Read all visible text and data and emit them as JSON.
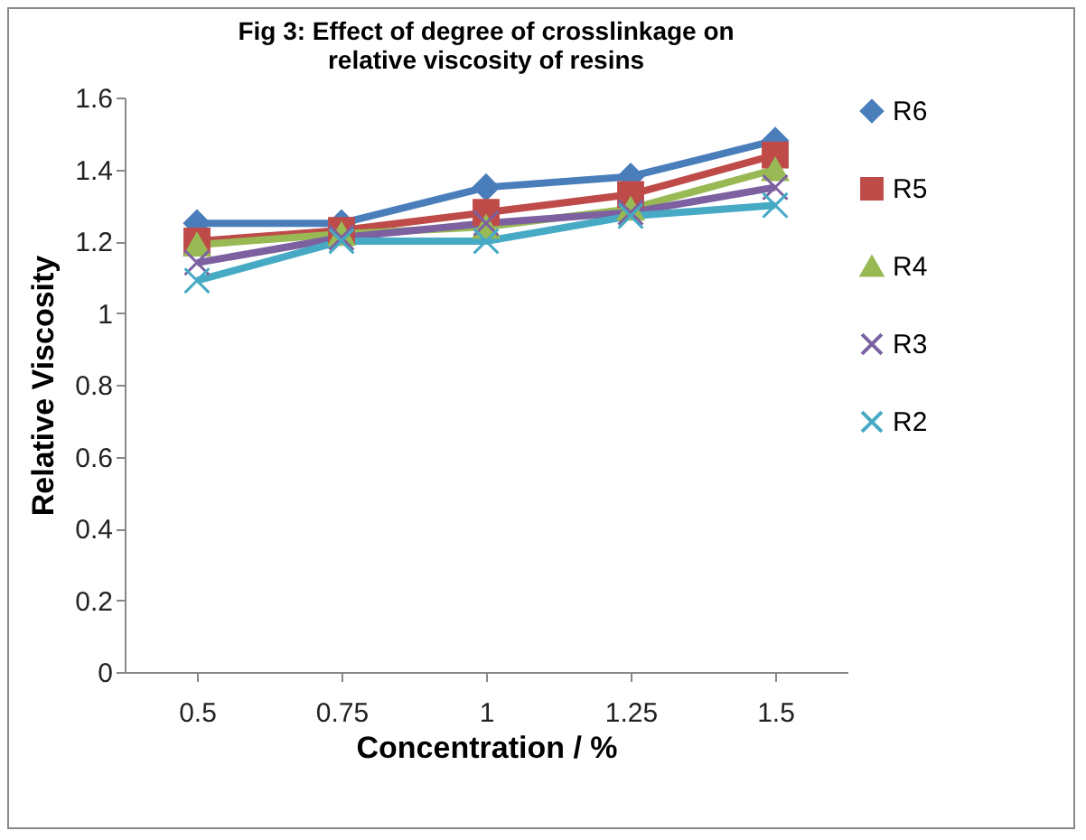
{
  "chart_data": {
    "type": "line",
    "title": "Fig 3: Effect of degree of crosslinkage on relative viscosity of resins",
    "xlabel": "Concentration / %",
    "ylabel": "Relative Viscosity",
    "categories": [
      "0.5",
      "0.75",
      "1",
      "1.25",
      "1.5"
    ],
    "ylim": [
      0,
      1.6
    ],
    "yticks": [
      0,
      0.2,
      0.4,
      0.6,
      0.8,
      1,
      1.2,
      1.4,
      1.6
    ],
    "grid": false,
    "legend": "right",
    "line_style": "solid",
    "series": [
      {
        "name": "R6",
        "color": "#4a7ebb",
        "marker": "diamond",
        "values": [
          1.25,
          1.25,
          1.35,
          1.38,
          1.48
        ]
      },
      {
        "name": "R5",
        "color": "#be4b48",
        "marker": "square",
        "values": [
          1.2,
          1.23,
          1.28,
          1.33,
          1.44
        ]
      },
      {
        "name": "R4",
        "color": "#98b954",
        "marker": "triangle",
        "values": [
          1.19,
          1.22,
          1.24,
          1.29,
          1.4
        ]
      },
      {
        "name": "R3",
        "color": "#7d60a0",
        "marker": "cross",
        "values": [
          1.14,
          1.21,
          1.25,
          1.28,
          1.35
        ]
      },
      {
        "name": "R2",
        "color": "#46aac5",
        "marker": "cross",
        "values": [
          1.09,
          1.2,
          1.2,
          1.27,
          1.3
        ]
      }
    ]
  }
}
